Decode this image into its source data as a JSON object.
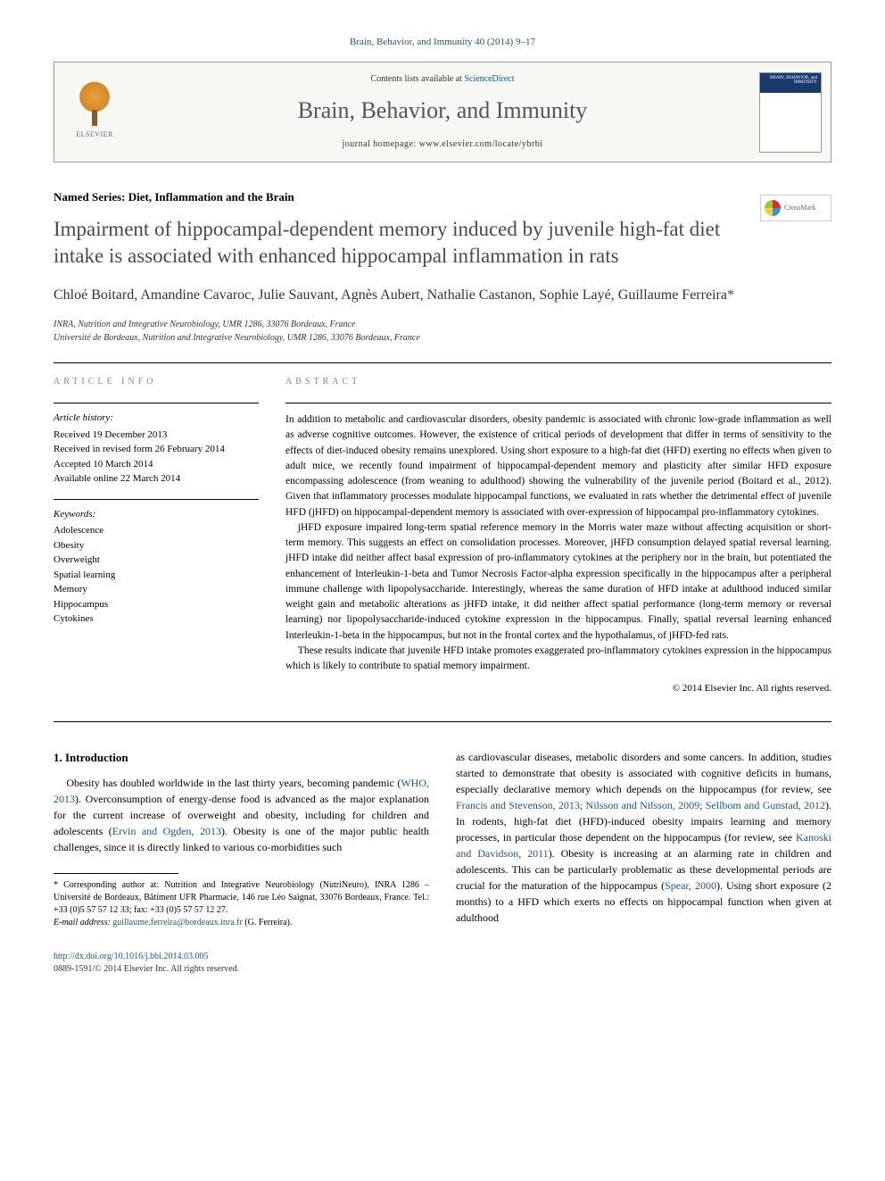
{
  "header": {
    "reference": "Brain, Behavior, and Immunity 40 (2014) 9–17",
    "contents_prefix": "Contents lists available at ",
    "contents_link": "ScienceDirect",
    "journal_name": "Brain, Behavior, and Immunity",
    "homepage_prefix": "journal homepage: ",
    "homepage_url": "www.elsevier.com/locate/ybrbi",
    "elsevier_label": "ELSEVIER",
    "cover_title": "BRAIN, BEHAVIOR, and IMMUNITY"
  },
  "crossmark": {
    "label": "CrossMark"
  },
  "article": {
    "series": "Named Series: Diet, Inflammation and the Brain",
    "title": "Impairment of hippocampal-dependent memory induced by juvenile high-fat diet intake is associated with enhanced hippocampal inflammation in rats",
    "authors": "Chloé Boitard, Amandine Cavaroc, Julie Sauvant, Agnès Aubert, Nathalie Castanon, Sophie Layé, Guillaume Ferreira",
    "corr_symbol": "*",
    "affiliations": [
      "INRA, Nutrition and Integrative Neurobiology, UMR 1286, 33076 Bordeaux, France",
      "Université de Bordeaux, Nutrition and Integrative Neurobiology, UMR 1286, 33076 Bordeaux, France"
    ]
  },
  "info": {
    "heading": "article info",
    "history_label": "Article history:",
    "history": [
      "Received 19 December 2013",
      "Received in revised form 26 February 2014",
      "Accepted 10 March 2014",
      "Available online 22 March 2014"
    ],
    "keywords_label": "Keywords:",
    "keywords": [
      "Adolescence",
      "Obesity",
      "Overweight",
      "Spatial learning",
      "Memory",
      "Hippocampus",
      "Cytokines"
    ]
  },
  "abstract": {
    "heading": "abstract",
    "paragraphs": [
      "In addition to metabolic and cardiovascular disorders, obesity pandemic is associated with chronic low-grade inflammation as well as adverse cognitive outcomes. However, the existence of critical periods of development that differ in terms of sensitivity to the effects of diet-induced obesity remains unexplored. Using short exposure to a high-fat diet (HFD) exerting no effects when given to adult mice, we recently found impairment of hippocampal-dependent memory and plasticity after similar HFD exposure encompassing adolescence (from weaning to adulthood) showing the vulnerability of the juvenile period (Boitard et al., 2012). Given that inflammatory processes modulate hippocampal functions, we evaluated in rats whether the detrimental effect of juvenile HFD (jHFD) on hippocampal-dependent memory is associated with over-expression of hippocampal pro-inflammatory cytokines.",
      "jHFD exposure impaired long-term spatial reference memory in the Morris water maze without affecting acquisition or short-term memory. This suggests an effect on consolidation processes. Moreover, jHFD consumption delayed spatial reversal learning. jHFD intake did neither affect basal expression of pro-inflammatory cytokines at the periphery nor in the brain, but potentiated the enhancement of Interleukin-1-beta and Tumor Necrosis Factor-alpha expression specifically in the hippocampus after a peripheral immune challenge with lipopolysaccharide. Interestingly, whereas the same duration of HFD intake at adulthood induced similar weight gain and metabolic alterations as jHFD intake, it did neither affect spatial performance (long-term memory or reversal learning) nor lipopolysaccharide-induced cytokine expression in the hippocampus. Finally, spatial reversal learning enhanced Interleukin-1-beta in the hippocampus, but not in the frontal cortex and the hypothalamus, of jHFD-fed rats.",
      "These results indicate that juvenile HFD intake promotes exaggerated pro-inflammatory cytokines expression in the hippocampus which is likely to contribute to spatial memory impairment."
    ],
    "copyright": "© 2014 Elsevier Inc. All rights reserved."
  },
  "body": {
    "section_heading": "1. Introduction",
    "col1": "Obesity has doubled worldwide in the last thirty years, becoming pandemic (WHO, 2013). Overconsumption of energy-dense food is advanced as the major explanation for the current increase of overweight and obesity, including for children and adolescents (Ervin and Ogden, 2013). Obesity is one of the major public health challenges, since it is directly linked to various co-morbidities such",
    "col2": "as cardiovascular diseases, metabolic disorders and some cancers. In addition, studies started to demonstrate that obesity is associated with cognitive deficits in humans, especially declarative memory which depends on the hippocampus (for review, see Francis and Stevenson, 2013; Nilsson and Nilsson, 2009; Sellbom and Gunstad, 2012). In rodents, high-fat diet (HFD)-induced obesity impairs learning and memory processes, in particular those dependent on the hippocampus (for review, see Kanoski and Davidson, 2011). Obesity is increasing at an alarming rate in children and adolescents. This can be particularly problematic as these developmental periods are crucial for the maturation of the hippocampus (Spear, 2000). Using short exposure (2 months) to a HFD which exerts no effects on hippocampal function when given at adulthood",
    "cites": {
      "who": "WHO, 2013",
      "ervin": "Ervin and Ogden, 2013",
      "francis": "Francis and Stevenson, 2013; Nilsson and Nilsson, 2009; Sellbom and Gunstad, 2012",
      "kanoski": "Kanoski and Davidson, 2011",
      "spear": "Spear, 2000"
    }
  },
  "footnote": {
    "text": "* Corresponding author at: Nutrition and Integrative Neurobiology (NutriNeuro), INRA 1286 – Université de Bordeaux, Bâtiment UFR Pharmacie, 146 rue Léo Saignat, 33076 Bordeaux, France. Tel.: +33 (0)5 57 57 12 33; fax: +33 (0)5 57 57 12 27.",
    "email_label": "E-mail address: ",
    "email": "guillaume.ferreira@bordeaux.inra.fr",
    "email_suffix": " (G. Ferreira)."
  },
  "footer": {
    "doi_prefix": "http://dx.doi.org/",
    "doi": "10.1016/j.bbi.2014.03.005",
    "issn_line": "0889-1591/© 2014 Elsevier Inc. All rights reserved."
  },
  "colors": {
    "link": "#1a5490",
    "text": "#000000",
    "muted": "#888888",
    "title_gray": "#4a4a4a"
  }
}
